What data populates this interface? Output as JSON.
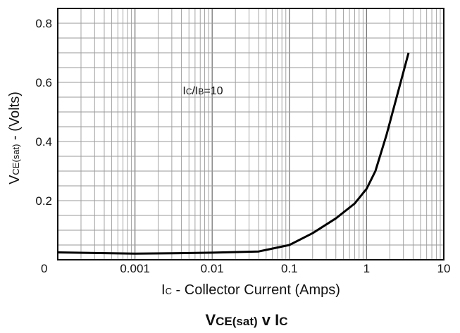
{
  "chart_data": {
    "type": "line",
    "title": {
      "main": "V",
      "sub": "CE(sat)",
      "mid": " v I",
      "sub2": "C"
    },
    "xlabel": {
      "main": "I",
      "sub": "C",
      "rest": " - Collector Current (Amps)"
    },
    "ylabel": {
      "main": "V",
      "sub": "CE(sat)",
      "rest": " - (Volts)"
    },
    "annotation": {
      "a": "I",
      "a_sub": "C",
      "slash": "/I",
      "b_sub": "B",
      "rest": "=10"
    },
    "x_scale": "log",
    "xlim": [
      0.0001,
      10
    ],
    "ylim": [
      0,
      0.85
    ],
    "grid": true,
    "x_ticks": [
      {
        "value": 0.0001,
        "label": "0"
      },
      {
        "value": 0.001,
        "label": "0.001"
      },
      {
        "value": 0.01,
        "label": "0.01"
      },
      {
        "value": 0.1,
        "label": "0.1"
      },
      {
        "value": 1,
        "label": "1"
      },
      {
        "value": 10,
        "label": "10"
      }
    ],
    "y_ticks": [
      {
        "value": 0.2,
        "label": "0.2"
      },
      {
        "value": 0.4,
        "label": "0.4"
      },
      {
        "value": 0.6,
        "label": "0.6"
      },
      {
        "value": 0.8,
        "label": "0.8"
      }
    ],
    "series": [
      {
        "color": "#000000",
        "x": [
          0.0001,
          0.0005,
          0.001,
          0.003,
          0.01,
          0.04,
          0.1,
          0.2,
          0.4,
          0.7,
          1.0,
          1.3,
          1.8,
          3.5
        ],
        "y": [
          0.025,
          0.022,
          0.021,
          0.022,
          0.024,
          0.028,
          0.05,
          0.09,
          0.14,
          0.19,
          0.24,
          0.3,
          0.42,
          0.7
        ]
      }
    ]
  }
}
